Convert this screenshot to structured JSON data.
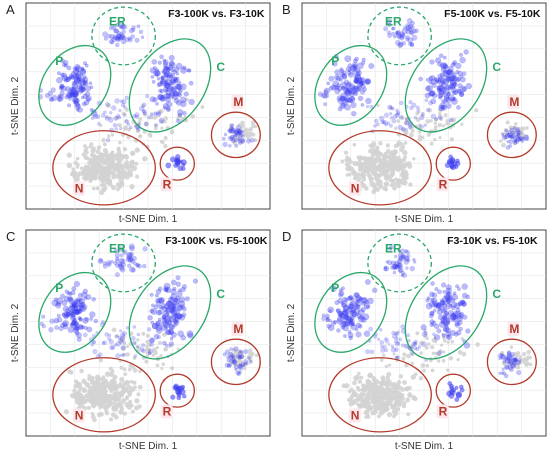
{
  "figure": {
    "panels": [
      {
        "letter": "A",
        "title": "F3-100K vs. F3-10K",
        "xlabel": "t-SNE Dim. 1",
        "ylabel": "t-SNE Dim. 2",
        "clusters": [
          {
            "label": "ER",
            "color": "#2aa86a",
            "style": "dashed"
          },
          {
            "label": "P",
            "color": "#2aa86a",
            "style": "solid"
          },
          {
            "label": "C",
            "color": "#2aa86a",
            "style": "solid"
          },
          {
            "label": "M",
            "color": "#b23a2a",
            "style": "solid"
          },
          {
            "label": "N",
            "color": "#b23a2a",
            "style": "solid"
          },
          {
            "label": "R",
            "color": "#b23a2a",
            "style": "solid"
          }
        ]
      },
      {
        "letter": "B",
        "title": "F5-100K vs. F5-10K",
        "xlabel": "t-SNE Dim. 1",
        "ylabel": "t-SNE Dim. 2",
        "clusters": [
          {
            "label": "ER",
            "color": "#2aa86a",
            "style": "dashed"
          },
          {
            "label": "P",
            "color": "#2aa86a",
            "style": "solid"
          },
          {
            "label": "C",
            "color": "#2aa86a",
            "style": "solid"
          },
          {
            "label": "M",
            "color": "#b23a2a",
            "style": "solid"
          },
          {
            "label": "N",
            "color": "#b23a2a",
            "style": "solid"
          },
          {
            "label": "R",
            "color": "#b23a2a",
            "style": "solid"
          }
        ]
      },
      {
        "letter": "C",
        "title": "F3-100K vs. F5-100K",
        "xlabel": "t-SNE Dim. 1",
        "ylabel": "t-SNE Dim. 2",
        "clusters": [
          {
            "label": "ER",
            "color": "#2aa86a",
            "style": "dashed"
          },
          {
            "label": "P",
            "color": "#2aa86a",
            "style": "solid"
          },
          {
            "label": "C",
            "color": "#2aa86a",
            "style": "solid"
          },
          {
            "label": "M",
            "color": "#b23a2a",
            "style": "solid"
          },
          {
            "label": "N",
            "color": "#b23a2a",
            "style": "solid"
          },
          {
            "label": "R",
            "color": "#b23a2a",
            "style": "solid"
          }
        ]
      },
      {
        "letter": "D",
        "title": "F3-10K vs. F5-10K",
        "xlabel": "t-SNE Dim. 1",
        "ylabel": "t-SNE Dim. 2",
        "clusters": [
          {
            "label": "ER",
            "color": "#2aa86a",
            "style": "dashed"
          },
          {
            "label": "P",
            "color": "#2aa86a",
            "style": "solid"
          },
          {
            "label": "C",
            "color": "#2aa86a",
            "style": "solid"
          },
          {
            "label": "M",
            "color": "#b23a2a",
            "style": "solid"
          },
          {
            "label": "N",
            "color": "#b23a2a",
            "style": "solid"
          },
          {
            "label": "R",
            "color": "#b23a2a",
            "style": "solid"
          }
        ]
      }
    ],
    "colors": {
      "background_points": "#d3d3d3",
      "highlight_points": "#3b3bf0",
      "grid": "#e6e6e6",
      "label_bg": "#fde6ec"
    }
  },
  "chart_data": {
    "type": "scatter",
    "grid": true,
    "axes_ticks": "none",
    "panels": [
      "A",
      "B",
      "C",
      "D"
    ]
  }
}
